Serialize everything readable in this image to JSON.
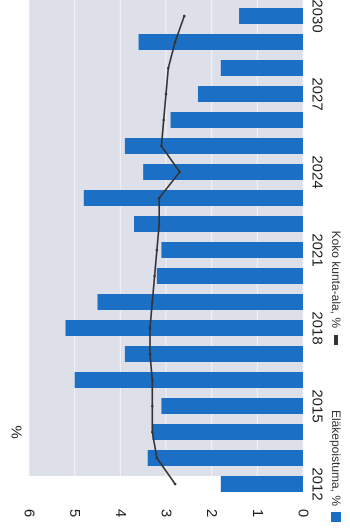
{
  "chart_data": {
    "type": "bar",
    "orientation": "rotated-90-clockwise",
    "unit_label": "%",
    "title": "",
    "categories": [
      "2012",
      "2013",
      "2014",
      "2015",
      "2016",
      "2017",
      "2018",
      "2019",
      "2020",
      "2021",
      "2022",
      "2023",
      "2024",
      "2025",
      "2026",
      "2027",
      "2028",
      "2029",
      "2030"
    ],
    "x_tick_labels": [
      "2012",
      "2015",
      "2018",
      "2021",
      "2024",
      "2027",
      "2030"
    ],
    "y_ticks": [
      0,
      1,
      2,
      3,
      4,
      5,
      6
    ],
    "ylim": [
      0,
      6
    ],
    "series": [
      {
        "name": "Eläkepoistuma, %",
        "type": "bar",
        "values": [
          1.8,
          3.4,
          3.3,
          3.1,
          5.0,
          3.9,
          5.2,
          4.5,
          3.2,
          3.1,
          3.7,
          4.8,
          3.5,
          3.9,
          2.9,
          2.3,
          1.8,
          3.6,
          1.4
        ]
      },
      {
        "name": "Koko kunta-ala, %",
        "type": "line",
        "values": [
          2.8,
          3.2,
          3.3,
          3.3,
          3.3,
          3.35,
          3.35,
          3.3,
          3.25,
          3.2,
          3.15,
          3.15,
          2.7,
          3.1,
          3.05,
          3.0,
          2.95,
          2.8,
          2.6
        ]
      }
    ],
    "grid": true,
    "legend_position": "bottom",
    "colors": {
      "bar": "#1b6fc5",
      "line": "#333333",
      "plot_background": "#dddfe9",
      "grid": "#f4f4f8"
    }
  }
}
